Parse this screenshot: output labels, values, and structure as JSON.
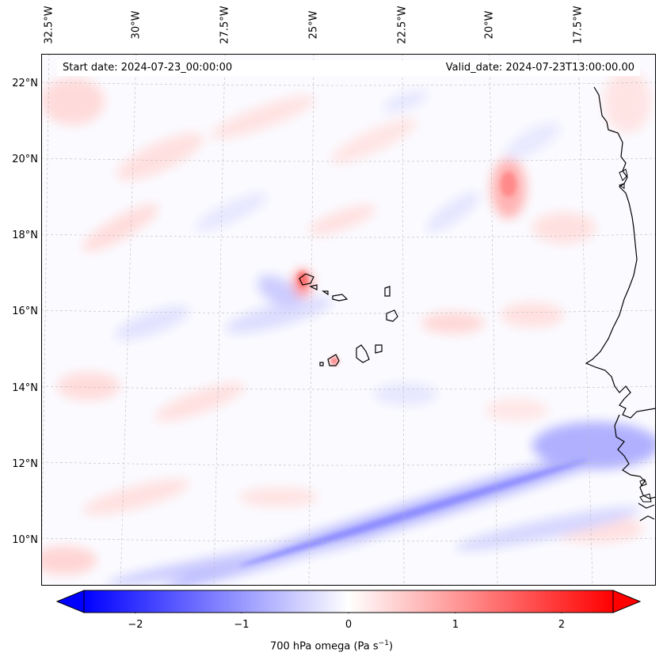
{
  "longitude_labels": [
    "32.5°W",
    "30°W",
    "27.5°W",
    "25°W",
    "22.5°W",
    "20°W",
    "17.5°W"
  ],
  "latitude_labels": [
    "22°N",
    "20°N",
    "18°N",
    "16°N",
    "14°N",
    "12°N",
    "10°N"
  ],
  "info": {
    "start_date": "Start date: 2024-07-23_00:00:00",
    "valid_date": "Valid_date: 2024-07-23T13:00:00.00"
  },
  "colorbar": {
    "ticks": [
      "−2",
      "−1",
      "0",
      "1",
      "2"
    ],
    "label_main": "700 hPa omega (Pa s",
    "label_exp": "−1",
    "label_close": ")",
    "min": -2.5,
    "max": 2.5,
    "colormap": "bwr",
    "extend": "both"
  },
  "colors": {
    "neg_max": "#0000ff",
    "zero": "#ffffff",
    "pos_max": "#ff0000",
    "coast": "#000000",
    "grid": "#bbbbbb"
  }
}
